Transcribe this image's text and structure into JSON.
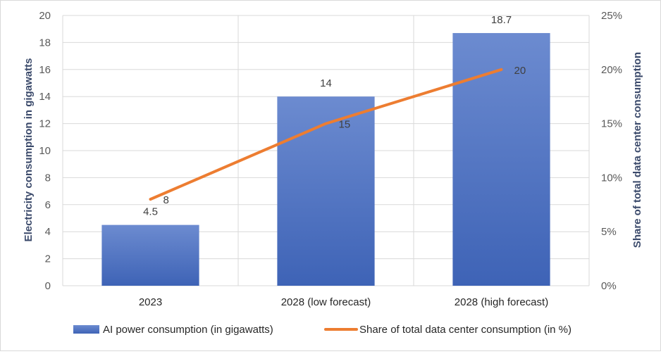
{
  "chart_data": {
    "type": "bar",
    "categories": [
      "2023",
      "2028 (low forecast)",
      "2028 (high forecast)"
    ],
    "series": [
      {
        "name": "AI power consumption (in gigawatts)",
        "type": "bar",
        "axis": "left",
        "values": [
          4.5,
          14,
          18.7
        ],
        "labels": [
          "4.5",
          "14",
          "18.7"
        ],
        "color": "#4472c4"
      },
      {
        "name": "Share of total data center consumption (in %)",
        "type": "line",
        "axis": "right",
        "values": [
          8,
          15,
          20
        ],
        "labels": [
          "8",
          "15",
          "20"
        ],
        "color": "#ed7d31"
      }
    ],
    "ylabel": "Electricity consumption in gigawatts",
    "y2label": "Share of total data center consumption",
    "ylim": [
      0,
      20
    ],
    "y2lim": [
      0,
      25
    ],
    "yticks": [
      "0",
      "2",
      "4",
      "6",
      "8",
      "10",
      "12",
      "14",
      "16",
      "18",
      "20"
    ],
    "y2ticks": [
      "0%",
      "5%",
      "10%",
      "15%",
      "20%",
      "25%"
    ],
    "grid": true,
    "legend_position": "bottom"
  }
}
